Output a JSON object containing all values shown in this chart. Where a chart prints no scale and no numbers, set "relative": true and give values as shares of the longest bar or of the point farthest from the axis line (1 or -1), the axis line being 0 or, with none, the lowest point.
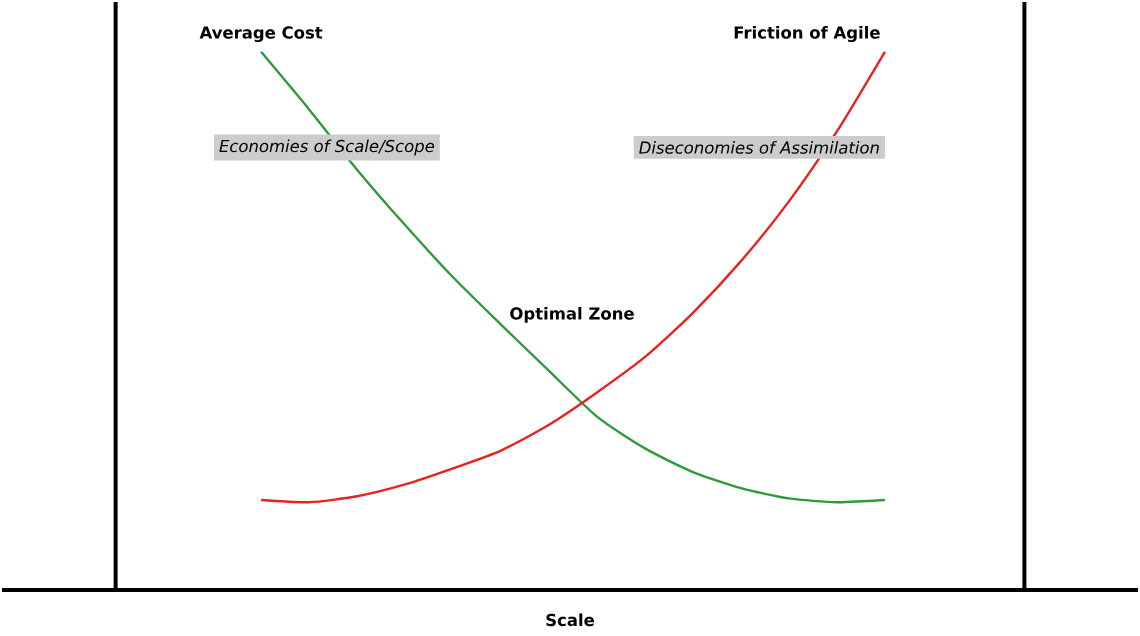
{
  "chart_data": {
    "type": "line",
    "relative": true,
    "xlabel": "Scale",
    "categories": [
      null,
      null,
      null,
      null,
      null,
      null,
      null,
      null,
      null,
      null,
      null,
      null,
      null,
      null
    ],
    "series": [
      {
        "name": "Average Cost",
        "color": "#2e9a3c",
        "values": [
          1,
          0.893,
          0.781,
          0.678,
          0.581,
          0.493,
          0.407,
          0.322,
          0.263,
          0.219,
          0.189,
          0.17,
          0.163,
          0.167
        ]
      },
      {
        "name": "Friction of Agile",
        "color": "#e8231f",
        "values": [
          0.167,
          0.163,
          0.174,
          0.196,
          0.226,
          0.259,
          0.307,
          0.367,
          0.433,
          0.515,
          0.611,
          0.722,
          0.852,
          1
        ]
      }
    ],
    "annotations": [
      "Economies of Scale/Scope",
      "Diseconomies of Assimilation",
      "Optimal Zone"
    ],
    "marker": "none",
    "line_style": "solid"
  }
}
